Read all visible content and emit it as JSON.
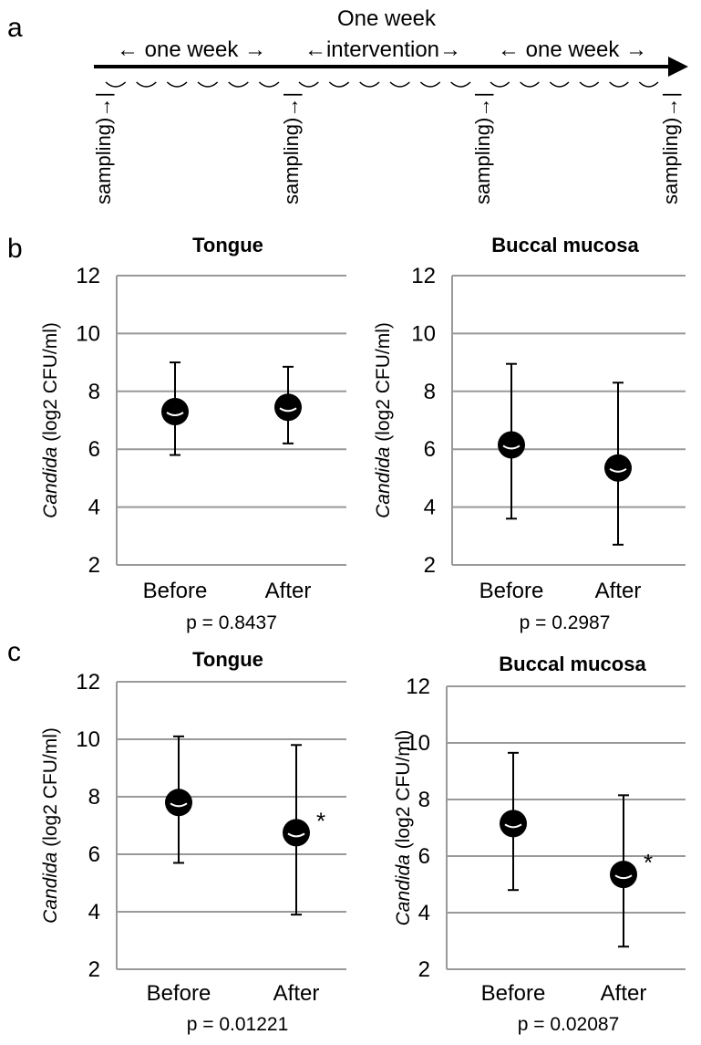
{
  "panel_letters": {
    "a": "a",
    "b": "b",
    "c": "c"
  },
  "timeline": {
    "title": "One week",
    "segments": [
      "← one week →",
      "←intervention→",
      "← one week →"
    ],
    "sampling_label": "sampling)→|"
  },
  "axis_style": {
    "grid_color": "#999999",
    "marker_color": "#000000"
  },
  "chart_data": [
    {
      "type": "scatter",
      "panel": "b",
      "title": "Tongue",
      "ylabel_italic": "Candida",
      "ylabel_rest": " (log2 CFU/ml)",
      "categories": [
        "Before",
        "After"
      ],
      "values": [
        7.3,
        7.45
      ],
      "error_low": [
        5.8,
        6.2
      ],
      "error_high": [
        9.0,
        8.85
      ],
      "ylim": [
        2,
        12
      ],
      "yticks": [
        "2",
        "4",
        "6",
        "8",
        "10",
        "12"
      ],
      "p_value": "p = 0.8437",
      "significance": [
        "",
        ""
      ],
      "grid": true
    },
    {
      "type": "scatter",
      "panel": "b",
      "title": "Buccal mucosa",
      "ylabel_italic": "Candida",
      "ylabel_rest": " (log2 CFU/ml)",
      "categories": [
        "Before",
        "After"
      ],
      "values": [
        6.15,
        5.35
      ],
      "error_low": [
        3.6,
        2.7
      ],
      "error_high": [
        8.95,
        8.3
      ],
      "ylim": [
        2,
        12
      ],
      "yticks": [
        "2",
        "4",
        "6",
        "8",
        "10",
        "12"
      ],
      "p_value": "p = 0.2987",
      "significance": [
        "",
        ""
      ],
      "grid": true
    },
    {
      "type": "scatter",
      "panel": "c",
      "title": "Tongue",
      "ylabel_italic": "Candida",
      "ylabel_rest": " (log2 CFU/ml)",
      "categories": [
        "Before",
        "After"
      ],
      "values": [
        7.8,
        6.75
      ],
      "error_low": [
        5.7,
        3.9
      ],
      "error_high": [
        10.1,
        9.8
      ],
      "ylim": [
        2,
        12
      ],
      "yticks": [
        "2",
        "4",
        "6",
        "8",
        "10",
        "12"
      ],
      "p_value": "p = 0.01221",
      "significance": [
        "",
        "*"
      ],
      "grid": true
    },
    {
      "type": "scatter",
      "panel": "c",
      "title": "Buccal mucosa",
      "ylabel_italic": "Candida",
      "ylabel_rest": " (log2 CFU/ml)",
      "categories": [
        "Before",
        "After"
      ],
      "values": [
        7.15,
        5.35
      ],
      "error_low": [
        4.8,
        2.8
      ],
      "error_high": [
        9.65,
        8.15
      ],
      "ylim": [
        2,
        12
      ],
      "yticks": [
        "2",
        "4",
        "6",
        "8",
        "10",
        "12"
      ],
      "p_value": "p = 0.02087",
      "significance": [
        "",
        "*"
      ],
      "grid": true
    }
  ]
}
